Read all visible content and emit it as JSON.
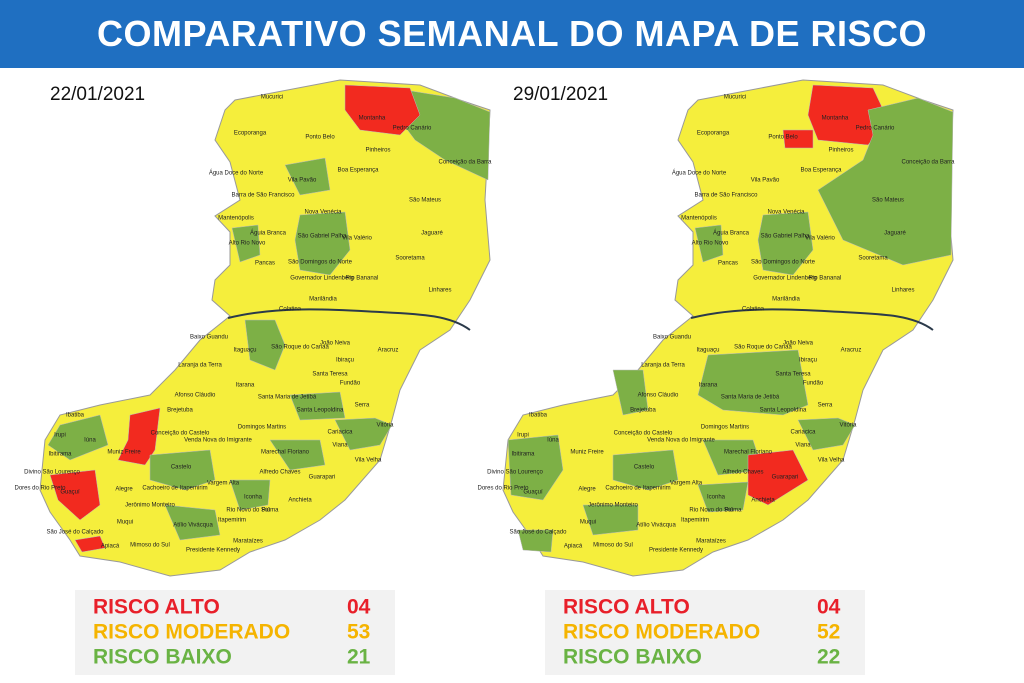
{
  "header": {
    "title": "COMPARATIVO SEMANAL DO MAPA DE RISCO"
  },
  "municipalities": [
    "Mucurici",
    "Montanha",
    "Pedro Canário",
    "Ecoporanga",
    "Ponto Belo",
    "Pinheiros",
    "Conceição da Barra",
    "Água Doce do Norte",
    "Boa Esperança",
    "Barra de São Francisco",
    "Vila Pavão",
    "São Mateus",
    "Nova Venécia",
    "Mantenópolis",
    "Águia Branca",
    "São Gabriel Palha",
    "Vila Valério",
    "Jaguaré",
    "Alto Rio Novo",
    "São Domingos do Norte",
    "Pancas",
    "Sooretama",
    "Governador Lindenberg",
    "Rio Bananal",
    "Linhares",
    "Marilândia",
    "Colatina",
    "Baixo Guandu",
    "São Roque do Canaã",
    "João Neiva",
    "Aracruz",
    "Itaguaçu",
    "Ibiraçu",
    "Laranja da Terra",
    "Itarana",
    "Santa Teresa",
    "Fundão",
    "Afonso Cláudio",
    "Santa Maria de Jetibá",
    "Brejetuba",
    "Santa Leopoldina",
    "Serra",
    "Ibatiba",
    "Iúna",
    "Irupi",
    "Conceição do Castelo",
    "Domingos Martins",
    "Venda Nova do Imigrante",
    "Cariacica",
    "Vitória",
    "Ibitirama",
    "Muniz Freire",
    "Marechal Floriano",
    "Viana",
    "Vila Velha",
    "Castelo",
    "Alfredo Chaves",
    "Guarapari",
    "Divino São Lourenço",
    "Dores do Rio Preto",
    "Alegre",
    "Vargem Alta",
    "Cachoeiro de Itapemirim",
    "Anchieta",
    "Guaçuí",
    "Jerônimo Monteiro",
    "Iconha",
    "Rio Novo do Sul",
    "Piúma",
    "Muqui",
    "Atílio Vivácqua",
    "Itapemirim",
    "São José do Calçado",
    "Apiacá",
    "Mimoso do Sul",
    "Presidente Kennedy",
    "Marataízes"
  ],
  "maps": [
    {
      "date": "22/01/2021",
      "legend": [
        {
          "label": "RISCO ALTO",
          "count": "04"
        },
        {
          "label": "RISCO MODERADO",
          "count": "53"
        },
        {
          "label": "RISCO BAIXO",
          "count": "21"
        }
      ]
    },
    {
      "date": "29/01/2021",
      "legend": [
        {
          "label": "RISCO ALTO",
          "count": "04"
        },
        {
          "label": "RISCO MODERADO",
          "count": "52"
        },
        {
          "label": "RISCO BAIXO",
          "count": "22"
        }
      ]
    }
  ]
}
